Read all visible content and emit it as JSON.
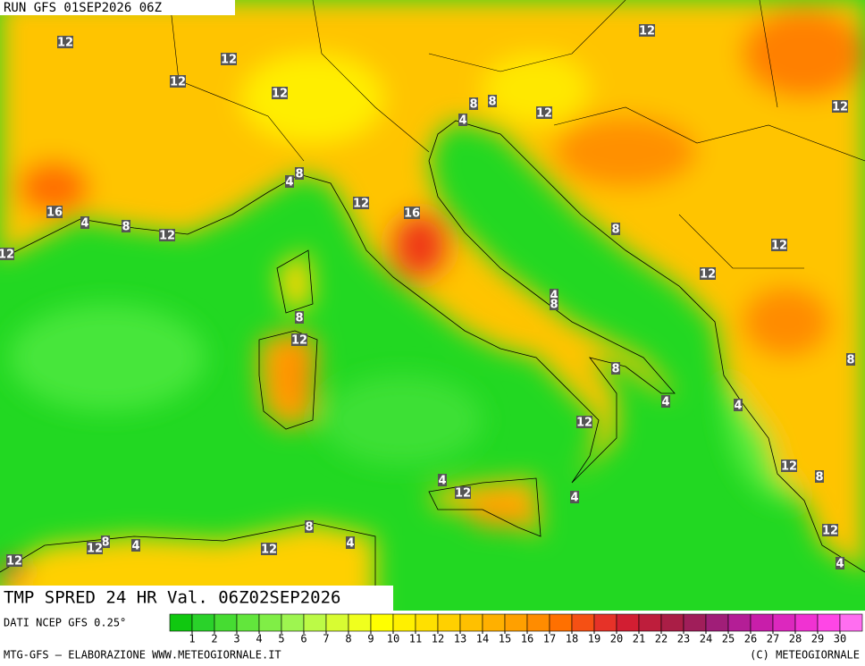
{
  "header": {
    "run": "RUN GFS 01SEP2026 06Z",
    "title": "TMP SPRED 24 HR Val. 06Z02SEP2026",
    "source": "DATI NCEP GFS 0.25°"
  },
  "contour_labels": [
    12,
    12,
    12,
    12,
    8,
    8,
    4,
    12,
    12,
    12,
    8,
    4,
    12,
    16,
    16,
    4,
    8,
    12,
    12,
    8,
    12,
    12,
    4,
    8,
    8,
    12,
    8,
    4,
    4,
    8,
    12,
    12,
    8,
    4,
    12,
    4,
    12,
    4,
    8,
    4,
    8,
    12,
    4,
    12,
    12
  ],
  "colorbar": {
    "levels": [
      1,
      2,
      3,
      4,
      5,
      6,
      7,
      8,
      9,
      10,
      11,
      12,
      13,
      14,
      15,
      16,
      17,
      18,
      19,
      20,
      21,
      22,
      23,
      24,
      25,
      26,
      27,
      28,
      29,
      30
    ],
    "colors": [
      "#10c810",
      "#2ad22a",
      "#46dc32",
      "#62e63c",
      "#80ee46",
      "#9ef550",
      "#bcfa46",
      "#d8fc32",
      "#f0ff1e",
      "#ffff00",
      "#fff000",
      "#ffe000",
      "#ffd000",
      "#ffc000",
      "#ffb000",
      "#ffa000",
      "#ff8c00",
      "#ff7000",
      "#f55014",
      "#e63228",
      "#d21e32",
      "#be1e3c",
      "#aa1e46",
      "#a01e5a",
      "#a01e78",
      "#b41e96",
      "#c81eaa",
      "#dc28be",
      "#f032d2",
      "#ff46e6",
      "#ff6ef0"
    ]
  },
  "footer": {
    "left": "MTG-GFS — ELABORAZIONE WWW.METEOGIORNALE.IT",
    "right": "(C) METEOGIORNALE"
  }
}
